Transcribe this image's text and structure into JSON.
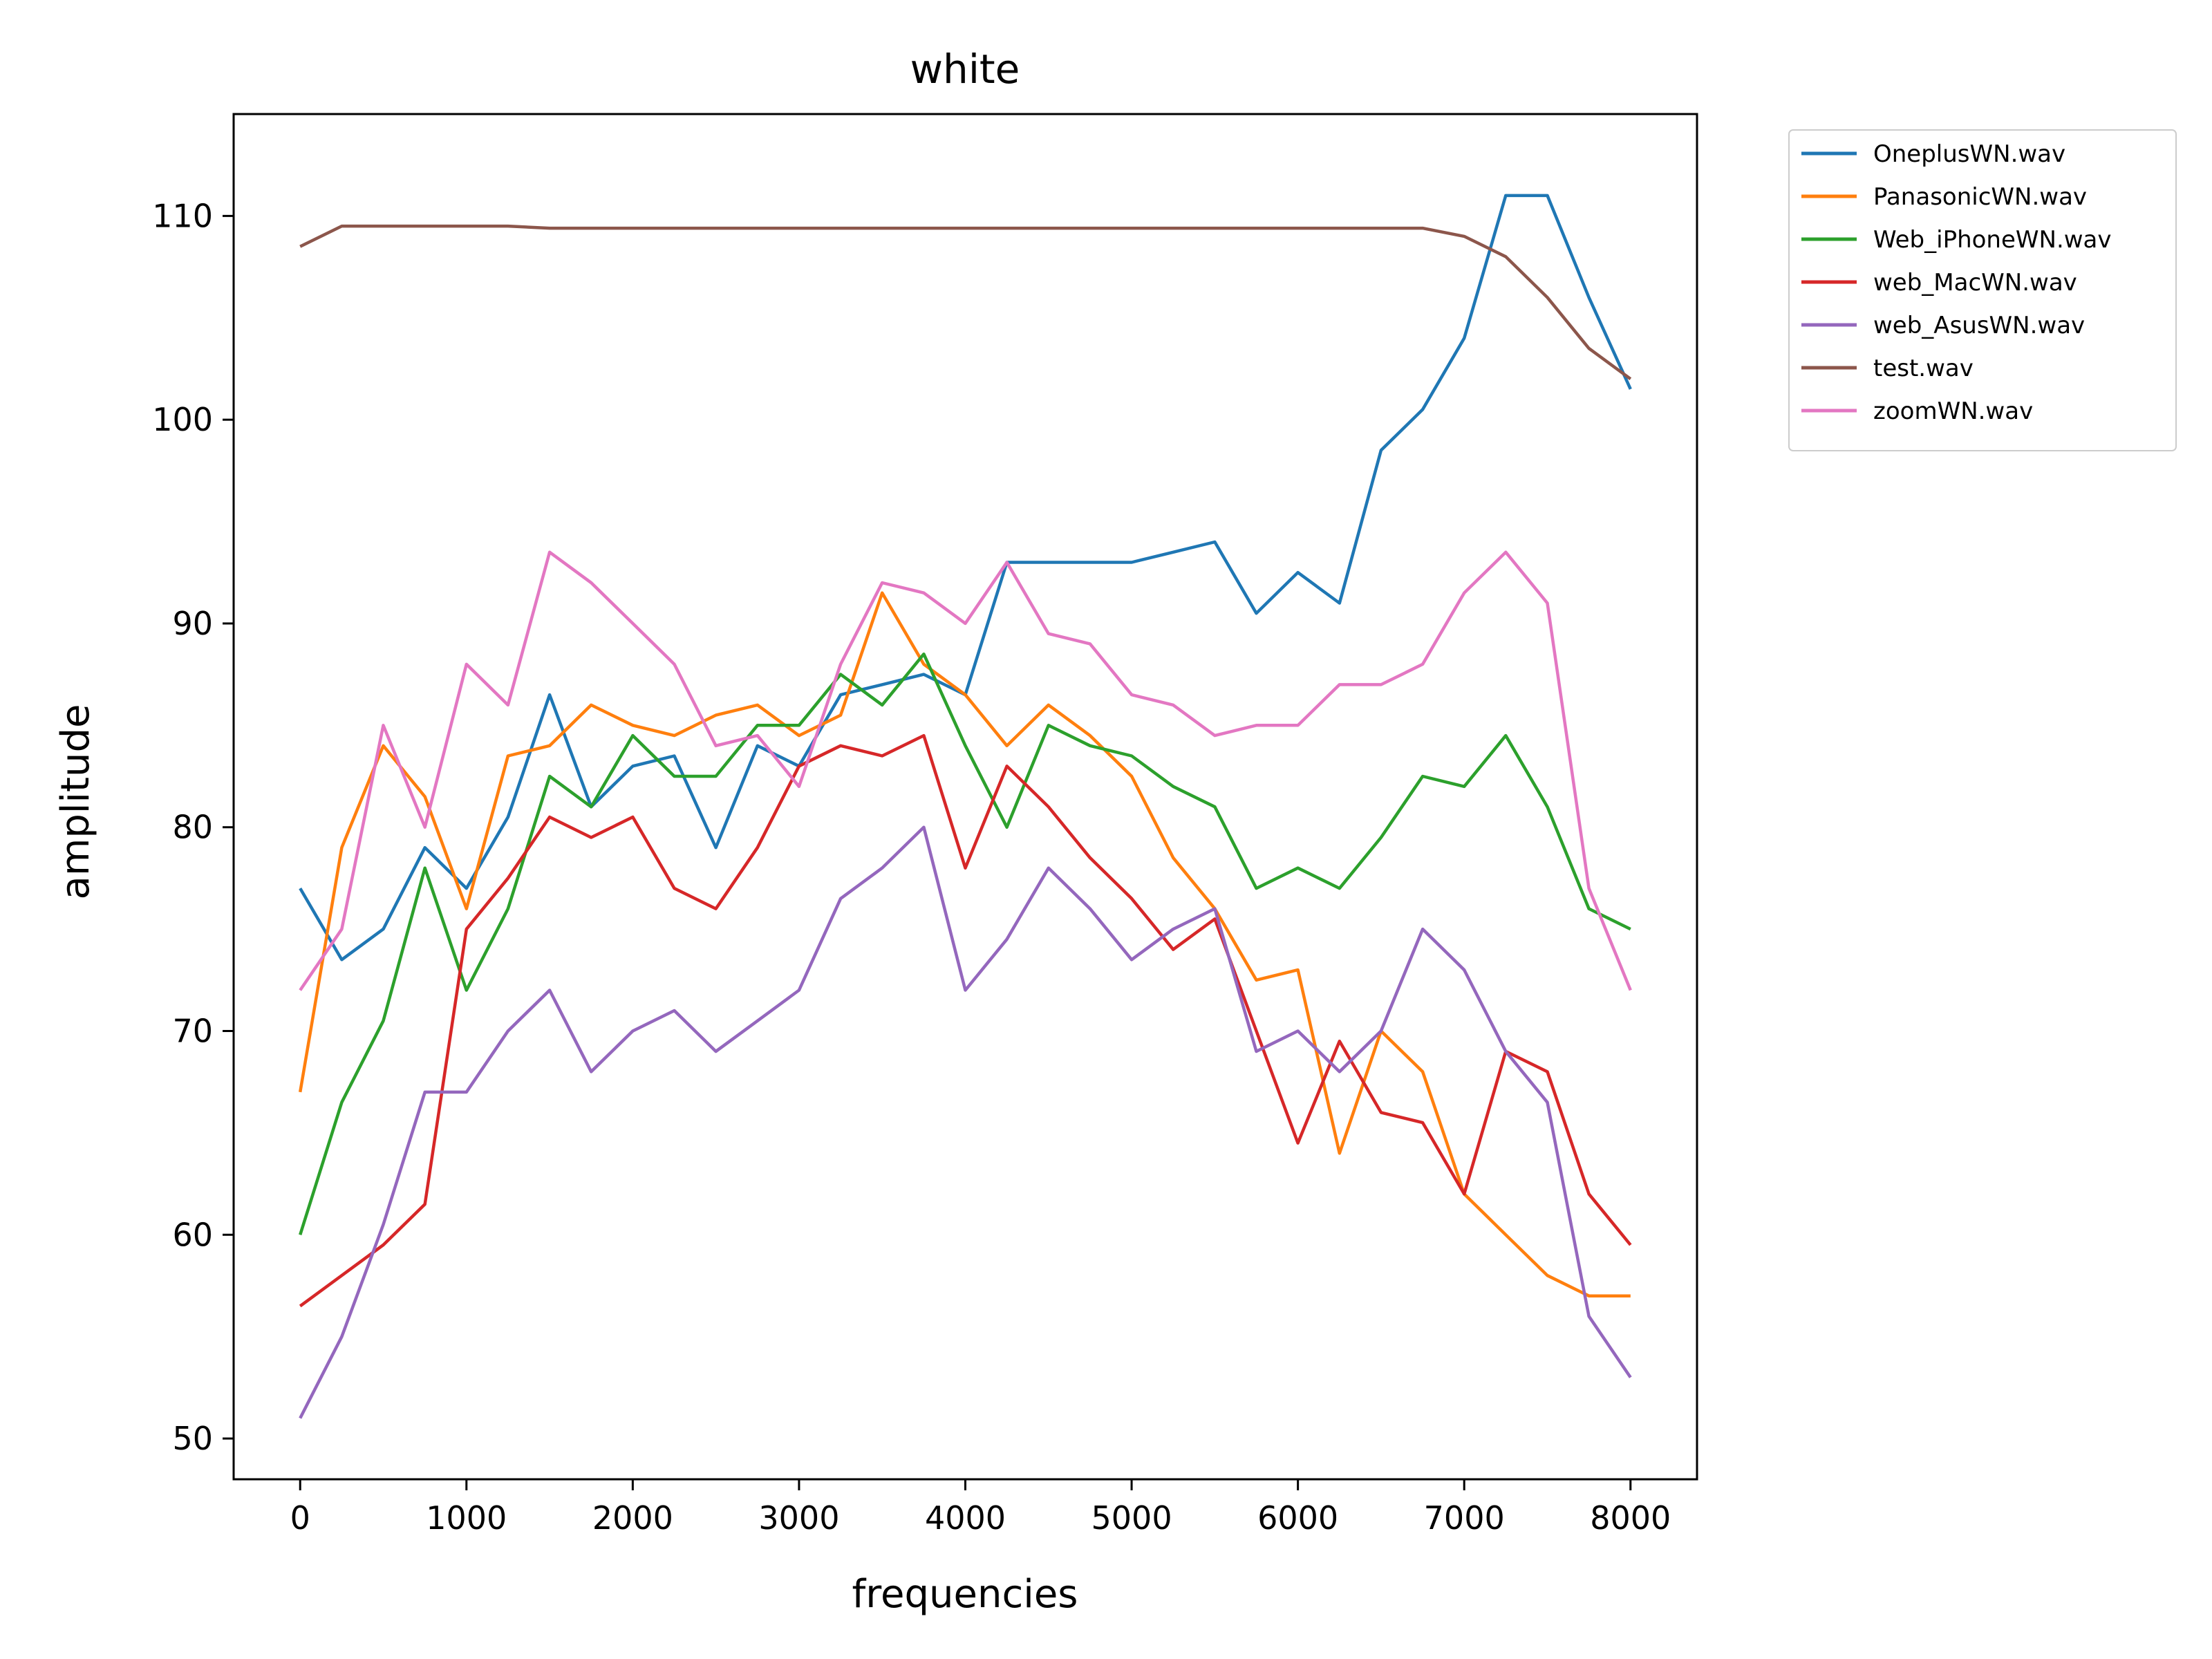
{
  "chart_data": {
    "type": "line",
    "title": "white",
    "xlabel": "frequencies",
    "ylabel": "amplitude",
    "xlim": [
      -400,
      8400
    ],
    "ylim": [
      48,
      115
    ],
    "xticks": [
      0,
      1000,
      2000,
      3000,
      4000,
      5000,
      6000,
      7000,
      8000
    ],
    "yticks": [
      50,
      60,
      70,
      80,
      90,
      100,
      110
    ],
    "legend_position": "outside-top-right",
    "grid": false,
    "x": [
      0,
      250,
      500,
      750,
      1000,
      1250,
      1500,
      1750,
      2000,
      2250,
      2500,
      2750,
      3000,
      3250,
      3500,
      3750,
      4000,
      4250,
      4500,
      4750,
      5000,
      5250,
      5500,
      5750,
      6000,
      6250,
      6500,
      6750,
      7000,
      7250,
      7500,
      7750,
      8000
    ],
    "series": [
      {
        "name": "OneplusWN.wav",
        "color": "#1f77b4",
        "values": [
          77,
          73.5,
          75,
          79,
          77,
          80.5,
          86.5,
          81,
          83,
          83.5,
          79,
          84,
          83,
          86.5,
          87,
          87.5,
          86.5,
          93,
          93,
          93,
          93,
          93.5,
          94,
          90.5,
          92.5,
          91,
          98.5,
          100.5,
          104,
          111,
          111,
          106,
          101.5
        ]
      },
      {
        "name": "PanasonicWN.wav",
        "color": "#ff7f0e",
        "values": [
          67,
          79,
          84,
          81.5,
          76,
          83.5,
          84,
          86,
          85,
          84.5,
          85.5,
          86,
          84.5,
          85.5,
          91.5,
          88,
          86.5,
          84,
          86,
          84.5,
          82.5,
          78.5,
          76,
          72.5,
          73,
          64,
          70,
          68,
          62,
          60,
          58,
          57,
          57
        ]
      },
      {
        "name": "Web_iPhoneWN.wav",
        "color": "#2ca02c",
        "values": [
          60,
          66.5,
          70.5,
          78,
          72,
          76,
          82.5,
          81,
          84.5,
          82.5,
          82.5,
          85,
          85,
          87.5,
          86,
          88.5,
          84,
          80,
          85,
          84,
          83.5,
          82,
          81,
          77,
          78,
          77,
          79.5,
          82.5,
          82,
          84.5,
          81,
          76,
          75
        ]
      },
      {
        "name": "web_MacWN.wav",
        "color": "#d62728",
        "values": [
          56.5,
          58,
          59.5,
          61.5,
          75,
          77.5,
          80.5,
          79.5,
          80.5,
          77,
          76,
          79,
          83,
          84,
          83.5,
          84.5,
          78,
          83,
          81,
          78.5,
          76.5,
          74,
          75.5,
          70,
          64.5,
          69.5,
          66,
          65.5,
          62,
          69,
          68,
          62,
          59.5
        ]
      },
      {
        "name": "web_AsusWN.wav",
        "color": "#9467bd",
        "values": [
          51,
          55,
          60.5,
          67,
          67,
          70,
          72,
          68,
          70,
          71,
          69,
          70.5,
          72,
          76.5,
          78,
          80,
          72,
          74.5,
          78,
          76,
          73.5,
          75,
          76,
          69,
          70,
          68,
          70,
          75,
          73,
          69,
          66.5,
          56,
          53
        ]
      },
      {
        "name": "test.wav",
        "color": "#8c564b",
        "values": [
          108.5,
          109.5,
          109.5,
          109.5,
          109.5,
          109.5,
          109.4,
          109.4,
          109.4,
          109.4,
          109.4,
          109.4,
          109.4,
          109.4,
          109.4,
          109.4,
          109.4,
          109.4,
          109.4,
          109.4,
          109.4,
          109.4,
          109.4,
          109.4,
          109.4,
          109.4,
          109.4,
          109.4,
          109,
          108,
          106,
          103.5,
          102
        ]
      },
      {
        "name": "zoomWN.wav",
        "color": "#e377c2",
        "values": [
          72,
          75,
          85,
          80,
          88,
          86,
          93.5,
          92,
          90,
          88,
          84,
          84.5,
          82,
          88,
          92,
          91.5,
          90,
          93,
          89.5,
          89,
          86.5,
          86,
          84.5,
          85,
          85,
          87,
          87,
          88,
          91.5,
          93.5,
          91,
          77,
          72
        ]
      }
    ]
  }
}
